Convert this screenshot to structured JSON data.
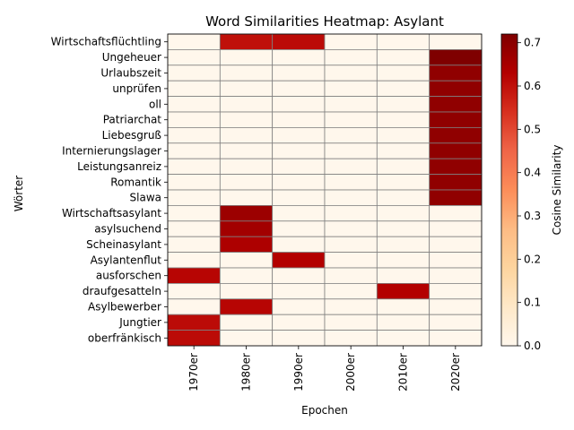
{
  "chart_data": {
    "type": "heatmap",
    "title": "Word Similarities Heatmap: Asylant",
    "xlabel": "Epochen",
    "ylabel": "Wörter",
    "x": [
      "1970er",
      "1980er",
      "1990er",
      "2000er",
      "2010er",
      "2020er"
    ],
    "y": [
      "Wirtschaftsflüchtling",
      "Ungeheuer",
      "Urlaubszeit",
      "unprüfen",
      "oll",
      "Patriarchat",
      "Liebesgruß",
      "Internierungslager",
      "Leistungsanreiz",
      "Romantik",
      "Slawa",
      "Wirtschaftsasylant",
      "asylsuchend",
      "Scheinasylant",
      "Asylantenflut",
      "ausforschen",
      "draufgesatteln",
      "Asylbewerber",
      "Jungtier",
      "oberfränkisch"
    ],
    "values": [
      [
        0,
        0.6,
        0.61,
        0,
        0,
        0
      ],
      [
        0,
        0,
        0,
        0,
        0,
        0.72
      ],
      [
        0,
        0,
        0,
        0,
        0,
        0.69
      ],
      [
        0,
        0,
        0,
        0,
        0,
        0.69
      ],
      [
        0,
        0,
        0,
        0,
        0,
        0.69
      ],
      [
        0,
        0,
        0,
        0,
        0,
        0.69
      ],
      [
        0,
        0,
        0,
        0,
        0,
        0.69
      ],
      [
        0,
        0,
        0,
        0,
        0,
        0.69
      ],
      [
        0,
        0,
        0,
        0,
        0,
        0.69
      ],
      [
        0,
        0,
        0,
        0,
        0,
        0.69
      ],
      [
        0,
        0,
        0,
        0,
        0,
        0.69
      ],
      [
        0,
        0.67,
        0,
        0,
        0,
        0
      ],
      [
        0,
        0.66,
        0,
        0,
        0,
        0
      ],
      [
        0,
        0.64,
        0,
        0,
        0,
        0
      ],
      [
        0,
        0,
        0.63,
        0,
        0,
        0
      ],
      [
        0.62,
        0,
        0,
        0,
        0,
        0
      ],
      [
        0,
        0,
        0,
        0,
        0.63,
        0
      ],
      [
        0,
        0.62,
        0,
        0,
        0,
        0
      ],
      [
        0.61,
        0,
        0,
        0,
        0,
        0
      ],
      [
        0.61,
        0,
        0,
        0,
        0,
        0
      ]
    ],
    "colorbar": {
      "label": "Cosine Similarity",
      "colormap": "OrRd",
      "range": [
        0,
        0.72
      ],
      "ticks": [
        "0.0",
        "0.1",
        "0.2",
        "0.3",
        "0.4",
        "0.5",
        "0.6",
        "0.7"
      ]
    },
    "colors": {
      "gridline": "#808080",
      "empty_cell": "#fff7ec",
      "max_cell": "#7f0000"
    }
  }
}
